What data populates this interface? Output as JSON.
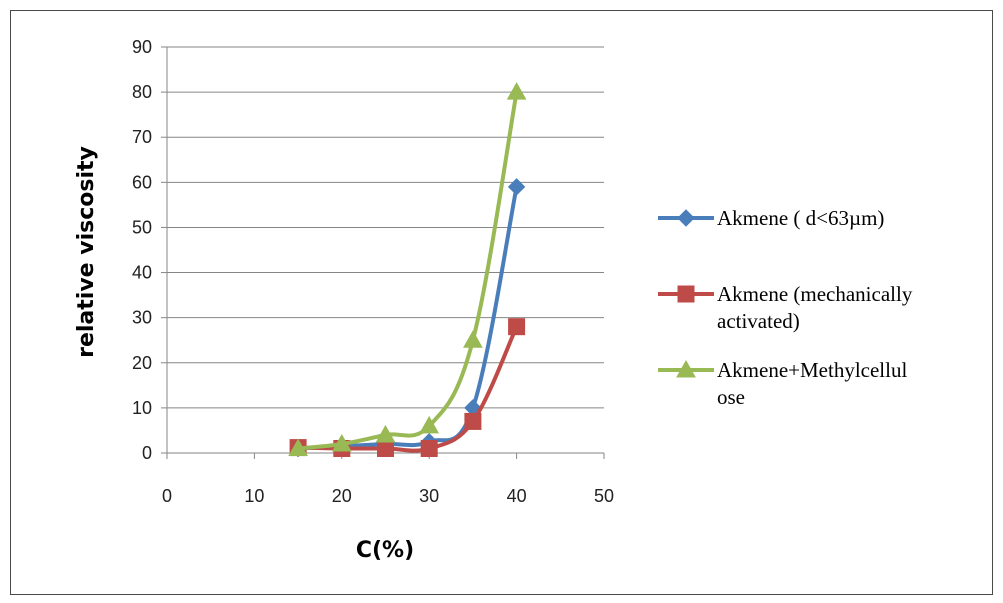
{
  "chart_data": {
    "type": "line",
    "xlabel": "C(%)",
    "ylabel": "relative viscosity",
    "xlim": [
      0,
      50
    ],
    "ylim": [
      0,
      90
    ],
    "xticks": [
      0,
      10,
      20,
      30,
      40,
      50
    ],
    "yticks": [
      0,
      10,
      20,
      30,
      40,
      50,
      60,
      70,
      80,
      90
    ],
    "grid": "horizontal",
    "legend_position": "right",
    "series": [
      {
        "name_lines": [
          "Akmene ( d<63µm)"
        ],
        "color": "#4a7ebb",
        "marker": "diamond",
        "x": [
          15,
          20,
          25,
          30,
          35,
          40
        ],
        "y": [
          1,
          1.5,
          2,
          2.5,
          10,
          59
        ]
      },
      {
        "name_lines": [
          "Akmene (mechanically",
          "activated)"
        ],
        "color": "#be4b48",
        "marker": "square",
        "x": [
          15,
          20,
          25,
          30,
          35,
          40
        ],
        "y": [
          1.2,
          1,
          1,
          1,
          7,
          28
        ]
      },
      {
        "name_lines": [
          "Akmene+Methylcellul",
          "ose"
        ],
        "color": "#98b954",
        "marker": "triangle",
        "x": [
          15,
          20,
          25,
          30,
          35,
          40
        ],
        "y": [
          1,
          2,
          4,
          6,
          25,
          80
        ]
      }
    ]
  }
}
